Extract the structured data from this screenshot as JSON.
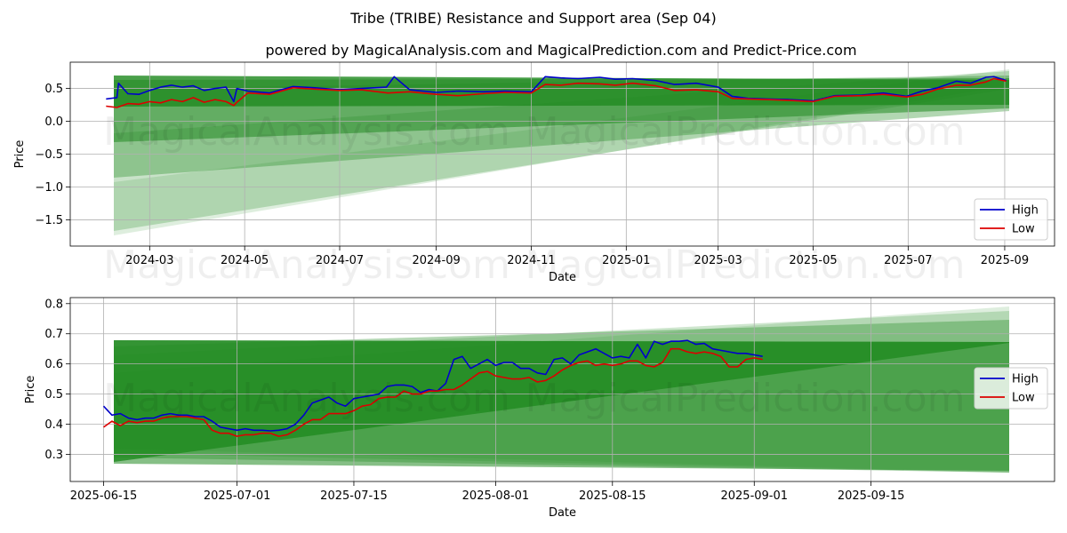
{
  "figure": {
    "title": "Tribe (TRIBE) Resistance and Support area (Sep 04)",
    "subtitle": "powered by MagicalAnalysis.com and MagicalPrediction.com and Predict-Price.com",
    "watermark_left": "MagicalAnalysis.com",
    "watermark_right": "MagicalPrediction.com"
  },
  "colors": {
    "high": "#0000cc",
    "low": "#dd0000",
    "band": "#228b22",
    "grid": "#b0b0b0"
  },
  "chart_data": [
    {
      "type": "line",
      "xlabel": "Date",
      "ylabel": "Price",
      "xlim": [
        "2024-01-10",
        "2025-10-03"
      ],
      "ylim": [
        -1.9,
        0.9
      ],
      "x_ticks": [
        "2024-03",
        "2024-05",
        "2024-07",
        "2024-09",
        "2024-11",
        "2025-01",
        "2025-03",
        "2025-05",
        "2025-07",
        "2025-09"
      ],
      "x_tick_dates": [
        "2024-03-01",
        "2024-05-01",
        "2024-07-01",
        "2024-09-01",
        "2024-11-01",
        "2025-01-01",
        "2025-03-01",
        "2025-05-01",
        "2025-07-01",
        "2025-09-01"
      ],
      "y_ticks": [
        "0.5",
        "0.0",
        "−0.5",
        "−1.0",
        "−1.5"
      ],
      "y_tick_values": [
        0.5,
        0.0,
        -0.5,
        -1.0,
        -1.5
      ],
      "grid": true,
      "legend": "bottom-right",
      "series": [
        {
          "name": "High",
          "x": [
            "2024-02-02",
            "2024-02-09",
            "2024-02-10",
            "2024-02-16",
            "2024-02-23",
            "2024-03-01",
            "2024-03-08",
            "2024-03-15",
            "2024-03-22",
            "2024-03-29",
            "2024-04-05",
            "2024-04-12",
            "2024-04-19",
            "2024-04-24",
            "2024-04-26",
            "2024-05-03",
            "2024-05-17",
            "2024-06-01",
            "2024-06-15",
            "2024-07-01",
            "2024-07-15",
            "2024-07-31",
            "2024-08-05",
            "2024-08-15",
            "2024-09-01",
            "2024-09-15",
            "2024-10-01",
            "2024-10-15",
            "2024-11-01",
            "2024-11-10",
            "2024-11-20",
            "2024-12-01",
            "2024-12-15",
            "2024-12-25",
            "2025-01-05",
            "2025-01-20",
            "2025-02-01",
            "2025-02-15",
            "2025-03-01",
            "2025-03-10",
            "2025-03-20",
            "2025-04-01",
            "2025-04-15",
            "2025-05-01",
            "2025-05-15",
            "2025-06-01",
            "2025-06-15",
            "2025-06-30",
            "2025-07-10",
            "2025-07-20",
            "2025-08-01",
            "2025-08-10",
            "2025-08-20",
            "2025-08-25",
            "2025-09-02"
          ],
          "values": [
            0.34,
            0.36,
            0.58,
            0.42,
            0.41,
            0.47,
            0.52,
            0.55,
            0.52,
            0.54,
            0.47,
            0.5,
            0.52,
            0.3,
            0.5,
            0.46,
            0.43,
            0.53,
            0.51,
            0.48,
            0.5,
            0.52,
            0.68,
            0.48,
            0.44,
            0.46,
            0.45,
            0.46,
            0.45,
            0.68,
            0.66,
            0.65,
            0.67,
            0.64,
            0.65,
            0.62,
            0.56,
            0.58,
            0.52,
            0.38,
            0.35,
            0.34,
            0.33,
            0.31,
            0.39,
            0.4,
            0.43,
            0.38,
            0.46,
            0.51,
            0.61,
            0.58,
            0.67,
            0.68,
            0.62
          ]
        },
        {
          "name": "Low",
          "x": [
            "2024-02-02",
            "2024-02-09",
            "2024-02-16",
            "2024-02-23",
            "2024-03-01",
            "2024-03-08",
            "2024-03-15",
            "2024-03-22",
            "2024-03-29",
            "2024-04-05",
            "2024-04-12",
            "2024-04-19",
            "2024-04-24",
            "2024-04-26",
            "2024-05-03",
            "2024-05-17",
            "2024-06-01",
            "2024-06-15",
            "2024-07-01",
            "2024-07-15",
            "2024-08-01",
            "2024-08-15",
            "2024-09-01",
            "2024-09-15",
            "2024-10-01",
            "2024-10-15",
            "2024-11-01",
            "2024-11-10",
            "2024-11-20",
            "2024-12-01",
            "2024-12-15",
            "2024-12-25",
            "2025-01-05",
            "2025-01-20",
            "2025-02-01",
            "2025-02-15",
            "2025-03-01",
            "2025-03-10",
            "2025-03-20",
            "2025-04-01",
            "2025-04-15",
            "2025-05-01",
            "2025-05-15",
            "2025-06-01",
            "2025-06-15",
            "2025-06-30",
            "2025-07-10",
            "2025-07-20",
            "2025-08-01",
            "2025-08-10",
            "2025-08-20",
            "2025-08-25",
            "2025-09-02"
          ],
          "values": [
            0.23,
            0.21,
            0.27,
            0.26,
            0.3,
            0.28,
            0.33,
            0.3,
            0.36,
            0.29,
            0.33,
            0.3,
            0.24,
            0.29,
            0.43,
            0.41,
            0.51,
            0.49,
            0.47,
            0.48,
            0.43,
            0.45,
            0.41,
            0.39,
            0.42,
            0.44,
            0.43,
            0.56,
            0.55,
            0.58,
            0.57,
            0.55,
            0.58,
            0.54,
            0.47,
            0.48,
            0.45,
            0.35,
            0.34,
            0.33,
            0.32,
            0.3,
            0.38,
            0.39,
            0.41,
            0.37,
            0.41,
            0.49,
            0.55,
            0.55,
            0.6,
            0.65,
            0.61
          ]
        }
      ]
    },
    {
      "type": "line",
      "xlabel": "Date",
      "ylabel": "Price",
      "xlim": [
        "2025-06-11",
        "2025-10-07"
      ],
      "ylim": [
        0.21,
        0.82
      ],
      "x_ticks": [
        "2025-06-15",
        "2025-07-01",
        "2025-07-15",
        "2025-08-01",
        "2025-08-15",
        "2025-09-01",
        "2025-09-15"
      ],
      "x_tick_dates": [
        "2025-06-15",
        "2025-07-01",
        "2025-07-15",
        "2025-08-01",
        "2025-08-15",
        "2025-09-01",
        "2025-09-15"
      ],
      "y_ticks": [
        "0.8",
        "0.7",
        "0.6",
        "0.5",
        "0.4",
        "0.3"
      ],
      "y_tick_values": [
        0.8,
        0.7,
        0.6,
        0.5,
        0.4,
        0.3
      ],
      "grid": true,
      "legend": "center-right",
      "series": [
        {
          "name": "High",
          "x": [
            "2025-06-15",
            "2025-06-16",
            "2025-06-17",
            "2025-06-18",
            "2025-06-19",
            "2025-06-20",
            "2025-06-21",
            "2025-06-22",
            "2025-06-23",
            "2025-06-24",
            "2025-06-25",
            "2025-06-26",
            "2025-06-27",
            "2025-06-28",
            "2025-06-29",
            "2025-06-30",
            "2025-07-01",
            "2025-07-02",
            "2025-07-03",
            "2025-07-04",
            "2025-07-05",
            "2025-07-06",
            "2025-07-07",
            "2025-07-08",
            "2025-07-09",
            "2025-07-10",
            "2025-07-11",
            "2025-07-12",
            "2025-07-13",
            "2025-07-14",
            "2025-07-15",
            "2025-07-16",
            "2025-07-17",
            "2025-07-18",
            "2025-07-19",
            "2025-07-20",
            "2025-07-21",
            "2025-07-22",
            "2025-07-23",
            "2025-07-24",
            "2025-07-25",
            "2025-07-26",
            "2025-07-27",
            "2025-07-28",
            "2025-07-29",
            "2025-07-30",
            "2025-07-31",
            "2025-08-01",
            "2025-08-02",
            "2025-08-03",
            "2025-08-04",
            "2025-08-05",
            "2025-08-06",
            "2025-08-07",
            "2025-08-08",
            "2025-08-09",
            "2025-08-10",
            "2025-08-11",
            "2025-08-12",
            "2025-08-13",
            "2025-08-14",
            "2025-08-15",
            "2025-08-16",
            "2025-08-17",
            "2025-08-18",
            "2025-08-19",
            "2025-08-20",
            "2025-08-21",
            "2025-08-22",
            "2025-08-23",
            "2025-08-24",
            "2025-08-25",
            "2025-08-26",
            "2025-08-27",
            "2025-08-28",
            "2025-08-29",
            "2025-08-30",
            "2025-08-31",
            "2025-09-01",
            "2025-09-02"
          ],
          "values": [
            0.46,
            0.43,
            0.435,
            0.42,
            0.415,
            0.42,
            0.42,
            0.43,
            0.435,
            0.43,
            0.43,
            0.425,
            0.425,
            0.41,
            0.39,
            0.385,
            0.38,
            0.385,
            0.38,
            0.38,
            0.378,
            0.38,
            0.385,
            0.4,
            0.43,
            0.47,
            0.48,
            0.49,
            0.47,
            0.46,
            0.485,
            0.49,
            0.495,
            0.5,
            0.525,
            0.53,
            0.53,
            0.525,
            0.505,
            0.515,
            0.51,
            0.535,
            0.615,
            0.625,
            0.585,
            0.6,
            0.615,
            0.595,
            0.605,
            0.605,
            0.585,
            0.585,
            0.57,
            0.565,
            0.615,
            0.62,
            0.6,
            0.63,
            0.64,
            0.65,
            0.635,
            0.62,
            0.625,
            0.62,
            0.665,
            0.62,
            0.675,
            0.665,
            0.675,
            0.675,
            0.678,
            0.665,
            0.668,
            0.65,
            0.645,
            0.64,
            0.635,
            0.635,
            0.63,
            0.625
          ]
        },
        {
          "name": "Low",
          "x": [
            "2025-06-15",
            "2025-06-16",
            "2025-06-17",
            "2025-06-18",
            "2025-06-19",
            "2025-06-20",
            "2025-06-21",
            "2025-06-22",
            "2025-06-23",
            "2025-06-24",
            "2025-06-25",
            "2025-06-26",
            "2025-06-27",
            "2025-06-28",
            "2025-06-29",
            "2025-06-30",
            "2025-07-01",
            "2025-07-02",
            "2025-07-03",
            "2025-07-04",
            "2025-07-05",
            "2025-07-06",
            "2025-07-07",
            "2025-07-08",
            "2025-07-09",
            "2025-07-10",
            "2025-07-11",
            "2025-07-12",
            "2025-07-13",
            "2025-07-14",
            "2025-07-15",
            "2025-07-16",
            "2025-07-17",
            "2025-07-18",
            "2025-07-19",
            "2025-07-20",
            "2025-07-21",
            "2025-07-22",
            "2025-07-23",
            "2025-07-24",
            "2025-07-25",
            "2025-07-26",
            "2025-07-27",
            "2025-07-28",
            "2025-07-29",
            "2025-07-30",
            "2025-07-31",
            "2025-08-01",
            "2025-08-02",
            "2025-08-03",
            "2025-08-04",
            "2025-08-05",
            "2025-08-06",
            "2025-08-07",
            "2025-08-08",
            "2025-08-09",
            "2025-08-10",
            "2025-08-11",
            "2025-08-12",
            "2025-08-13",
            "2025-08-14",
            "2025-08-15",
            "2025-08-16",
            "2025-08-17",
            "2025-08-18",
            "2025-08-19",
            "2025-08-20",
            "2025-08-21",
            "2025-08-22",
            "2025-08-23",
            "2025-08-24",
            "2025-08-25",
            "2025-08-26",
            "2025-08-27",
            "2025-08-28",
            "2025-08-29",
            "2025-08-30",
            "2025-08-31",
            "2025-09-01",
            "2025-09-02"
          ],
          "values": [
            0.39,
            0.41,
            0.395,
            0.41,
            0.405,
            0.41,
            0.41,
            0.42,
            0.425,
            0.425,
            0.425,
            0.42,
            0.415,
            0.38,
            0.37,
            0.37,
            0.36,
            0.365,
            0.365,
            0.37,
            0.37,
            0.36,
            0.365,
            0.38,
            0.4,
            0.415,
            0.415,
            0.435,
            0.435,
            0.435,
            0.445,
            0.46,
            0.465,
            0.485,
            0.49,
            0.49,
            0.51,
            0.5,
            0.5,
            0.51,
            0.51,
            0.515,
            0.515,
            0.53,
            0.55,
            0.57,
            0.575,
            0.56,
            0.555,
            0.55,
            0.55,
            0.555,
            0.54,
            0.545,
            0.56,
            0.58,
            0.595,
            0.605,
            0.61,
            0.595,
            0.6,
            0.595,
            0.6,
            0.61,
            0.61,
            0.595,
            0.59,
            0.605,
            0.65,
            0.65,
            0.64,
            0.635,
            0.64,
            0.635,
            0.625,
            0.59,
            0.59,
            0.615,
            0.62,
            0.615
          ]
        }
      ]
    }
  ]
}
